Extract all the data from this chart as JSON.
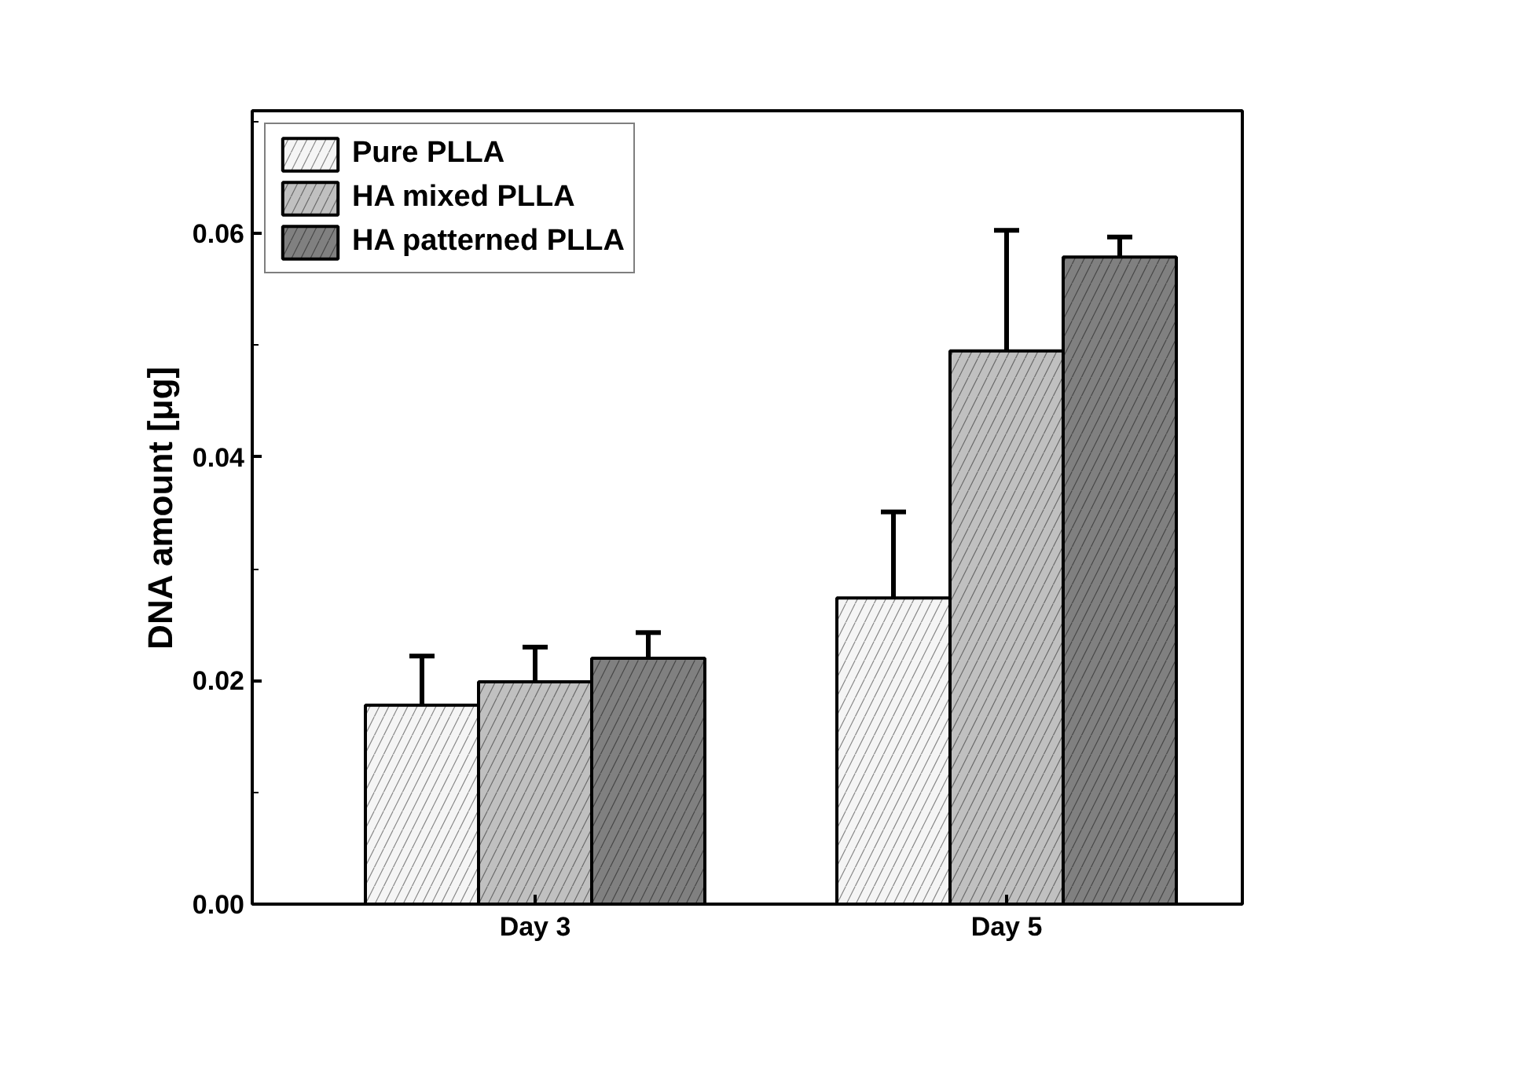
{
  "chart_data": {
    "type": "bar",
    "categories": [
      "Day 3",
      "Day 5"
    ],
    "ylabel": "DNA amount [μg]",
    "ylim": [
      0,
      0.071
    ],
    "yticks": [
      {
        "value": 0,
        "label": "0.00"
      },
      {
        "value": 0.01,
        "label": null
      },
      {
        "value": 0.02,
        "label": "0.02"
      },
      {
        "value": 0.03,
        "label": null
      },
      {
        "value": 0.04,
        "label": "0.04"
      },
      {
        "value": 0.05,
        "label": null
      },
      {
        "value": 0.06,
        "label": "0.06"
      },
      {
        "value": 0.07,
        "label": null
      }
    ],
    "series": [
      {
        "name": "Pure PLLA",
        "color": "#f5f5f5",
        "values": [
          0.0178,
          0.0274
        ],
        "errors": [
          [
            0.0136,
            0.0222
          ],
          [
            0.0193,
            0.0351
          ]
        ]
      },
      {
        "name": "HA mixed PLLA",
        "color": "#c0c0c0",
        "values": [
          0.0199,
          0.0495
        ],
        "errors": [
          [
            0.0168,
            0.023
          ],
          [
            0.039,
            0.0603
          ]
        ]
      },
      {
        "name": "HA patterned PLLA",
        "color": "#808080",
        "values": [
          0.022,
          0.0579
        ],
        "errors": [
          [
            0.0196,
            0.0243
          ],
          [
            0.0559,
            0.0597
          ]
        ]
      }
    ],
    "legend": "top left",
    "grid": false
  }
}
